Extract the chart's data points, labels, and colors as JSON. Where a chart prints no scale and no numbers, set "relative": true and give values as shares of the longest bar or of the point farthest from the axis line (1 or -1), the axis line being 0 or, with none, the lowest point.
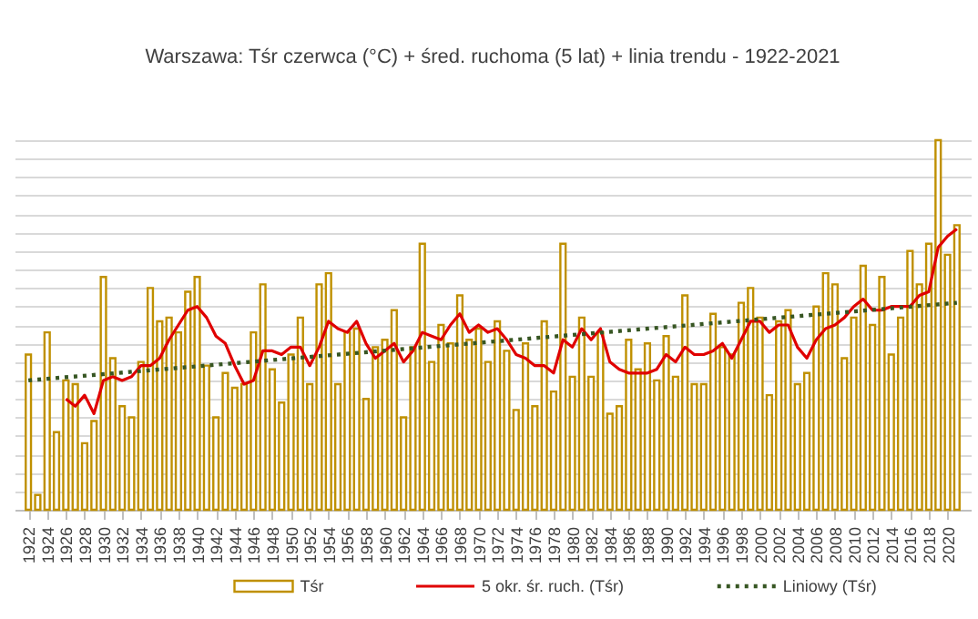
{
  "chart_data": {
    "type": "bar",
    "title": "Warszawa:  Tśr czerwca (°C) + śred. ruchoma  (5 lat) + linia trendu - 1922-2021",
    "relative": true,
    "grid": "y",
    "legend": "bottom",
    "tick_labels": "x",
    "x": [
      1922,
      1923,
      1924,
      1925,
      1926,
      1927,
      1928,
      1929,
      1930,
      1931,
      1932,
      1933,
      1934,
      1935,
      1936,
      1937,
      1938,
      1939,
      1940,
      1941,
      1942,
      1943,
      1944,
      1945,
      1946,
      1947,
      1948,
      1949,
      1950,
      1951,
      1952,
      1953,
      1954,
      1955,
      1956,
      1957,
      1958,
      1959,
      1960,
      1961,
      1962,
      1963,
      1964,
      1965,
      1966,
      1967,
      1968,
      1969,
      1970,
      1971,
      1972,
      1973,
      1974,
      1975,
      1976,
      1977,
      1978,
      1979,
      1980,
      1981,
      1982,
      1983,
      1984,
      1985,
      1986,
      1987,
      1988,
      1989,
      1990,
      1991,
      1992,
      1993,
      1994,
      1995,
      1996,
      1997,
      1998,
      1999,
      2000,
      2001,
      2002,
      2003,
      2004,
      2005,
      2006,
      2007,
      2008,
      2009,
      2010,
      2011,
      2012,
      2013,
      2014,
      2015,
      2016,
      2017,
      2018,
      2019,
      2020,
      2021
    ],
    "xlim": [
      1921.5,
      2021.5
    ],
    "xticks": [
      1922,
      1924,
      1926,
      1928,
      1930,
      1932,
      1934,
      1936,
      1938,
      1940,
      1942,
      1944,
      1946,
      1948,
      1950,
      1952,
      1954,
      1956,
      1958,
      1960,
      1962,
      1964,
      1966,
      1968,
      1970,
      1972,
      1974,
      1976,
      1978,
      1980,
      1982,
      1984,
      1986,
      1988,
      1990,
      1992,
      1994,
      1996,
      1998,
      2000,
      2002,
      2004,
      2006,
      2008,
      2010,
      2012,
      2014,
      2016,
      2018,
      2020
    ],
    "series": [
      {
        "name": "Tśr",
        "color": "#bf9000",
        "values": [
          0.42,
          0.04,
          0.48,
          0.21,
          0.35,
          0.34,
          0.18,
          0.24,
          0.63,
          0.41,
          0.28,
          0.25,
          0.4,
          0.6,
          0.51,
          0.52,
          0.48,
          0.59,
          0.63,
          0.39,
          0.25,
          0.37,
          0.33,
          0.34,
          0.48,
          0.61,
          0.38,
          0.29,
          0.42,
          0.52,
          0.34,
          0.61,
          0.64,
          0.34,
          0.48,
          0.49,
          0.3,
          0.44,
          0.46,
          0.54,
          0.25,
          0.44,
          0.72,
          0.4,
          0.5,
          0.45,
          0.58,
          0.46,
          0.49,
          0.4,
          0.51,
          0.43,
          0.27,
          0.45,
          0.28,
          0.51,
          0.32,
          0.72,
          0.36,
          0.52,
          0.36,
          0.48,
          0.26,
          0.28,
          0.46,
          0.38,
          0.45,
          0.35,
          0.47,
          0.36,
          0.58,
          0.34,
          0.34,
          0.53,
          0.44,
          0.42,
          0.56,
          0.6,
          0.52,
          0.31,
          0.51,
          0.54,
          0.34,
          0.37,
          0.55,
          0.64,
          0.61,
          0.41,
          0.52,
          0.66,
          0.5,
          0.63,
          0.42,
          0.52,
          0.7,
          0.61,
          0.72,
          1,
          0.69,
          0.77
        ]
      },
      {
        "name": "5 okr. śr. ruch. (Tśr)",
        "type": "line",
        "color": "#e00000",
        "line_style": "solid",
        "values": [
          null,
          null,
          null,
          null,
          0.3,
          0.28,
          0.31,
          0.26,
          0.35,
          0.36,
          0.35,
          0.36,
          0.39,
          0.39,
          0.41,
          0.46,
          0.5,
          0.54,
          0.55,
          0.52,
          0.47,
          0.45,
          0.39,
          0.34,
          0.35,
          0.43,
          0.43,
          0.42,
          0.44,
          0.44,
          0.39,
          0.44,
          0.51,
          0.49,
          0.48,
          0.51,
          0.45,
          0.41,
          0.43,
          0.45,
          0.4,
          0.43,
          0.48,
          0.47,
          0.46,
          0.5,
          0.53,
          0.48,
          0.5,
          0.48,
          0.49,
          0.46,
          0.42,
          0.41,
          0.39,
          0.39,
          0.37,
          0.46,
          0.44,
          0.49,
          0.46,
          0.49,
          0.4,
          0.38,
          0.37,
          0.37,
          0.37,
          0.38,
          0.42,
          0.4,
          0.44,
          0.42,
          0.42,
          0.43,
          0.45,
          0.41,
          0.46,
          0.51,
          0.51,
          0.48,
          0.5,
          0.5,
          0.44,
          0.41,
          0.46,
          0.49,
          0.5,
          0.52,
          0.55,
          0.57,
          0.54,
          0.54,
          0.55,
          0.55,
          0.55,
          0.58,
          0.59,
          0.71,
          0.74,
          0.76
        ]
      },
      {
        "name": "Liniowy (Tśr)",
        "type": "line",
        "color": "#375623",
        "line_style": "dotted",
        "x": [
          1922,
          2021
        ],
        "values": [
          0.35,
          0.56
        ]
      }
    ]
  }
}
